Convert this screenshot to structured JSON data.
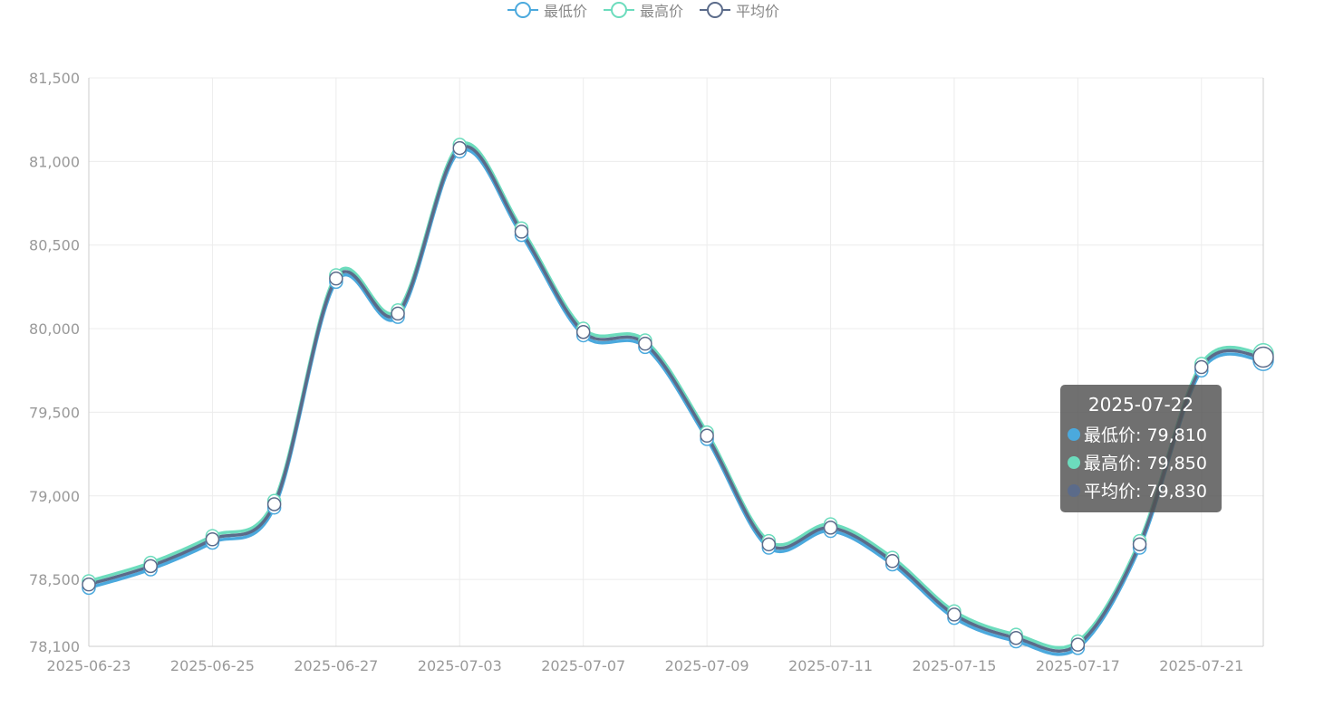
{
  "legend": [
    {
      "name": "最低价",
      "color": "#4ba9dd"
    },
    {
      "name": "最高价",
      "color": "#6cdcbd"
    },
    {
      "name": "平均价",
      "color": "#5b6b8a"
    }
  ],
  "tooltip": {
    "title": "2025-07-22",
    "rows": [
      {
        "label": "最低价: 79,810",
        "color": "#4ba9dd"
      },
      {
        "label": "最高价: 79,850",
        "color": "#6cdcbd"
      },
      {
        "label": "平均价: 79,830",
        "color": "#5b6b8a"
      }
    ]
  },
  "chart_data": {
    "type": "line",
    "x": [
      "2025-06-23",
      "2025-06-24",
      "2025-06-25",
      "2025-06-26",
      "2025-06-27",
      "2025-06-30",
      "2025-07-03",
      "2025-07-04",
      "2025-07-07",
      "2025-07-08",
      "2025-07-09",
      "2025-07-10",
      "2025-07-11",
      "2025-07-14",
      "2025-07-15",
      "2025-07-16",
      "2025-07-17",
      "2025-07-18",
      "2025-07-21",
      "2025-07-22"
    ],
    "x_tick_labels": [
      "2025-06-23",
      "2025-06-25",
      "2025-06-27",
      "2025-07-03",
      "2025-07-07",
      "2025-07-09",
      "2025-07-11",
      "2025-07-15",
      "2025-07-17",
      "2025-07-21"
    ],
    "y_tick_labels": [
      "78,100",
      "78,500",
      "79,000",
      "79,500",
      "80,000",
      "80,500",
      "81,000",
      "81,500"
    ],
    "ylim": [
      78100,
      81500
    ],
    "series": [
      {
        "name": "最低价",
        "color": "#4ba9dd",
        "values": [
          78450,
          78560,
          78720,
          78930,
          80280,
          80070,
          81060,
          80560,
          79960,
          79890,
          79340,
          78690,
          78790,
          78590,
          78270,
          78130,
          78090,
          78690,
          79750,
          79810
        ]
      },
      {
        "name": "最高价",
        "color": "#6cdcbd",
        "values": [
          78490,
          78600,
          78760,
          78970,
          80320,
          80110,
          81100,
          80600,
          80000,
          79930,
          79380,
          78730,
          78830,
          78630,
          78310,
          78170,
          78130,
          78730,
          79790,
          79850
        ]
      },
      {
        "name": "平均价",
        "color": "#5b6b8a",
        "values": [
          78470,
          78580,
          78740,
          78950,
          80300,
          80090,
          81080,
          80580,
          79980,
          79910,
          79360,
          78710,
          78810,
          78610,
          78290,
          78150,
          78110,
          78710,
          79770,
          79830
        ]
      }
    ],
    "grid": true
  }
}
